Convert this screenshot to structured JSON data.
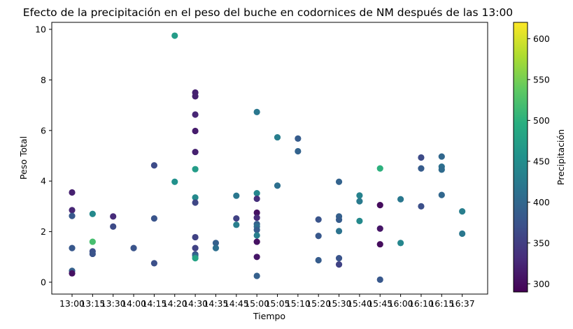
{
  "chart_data": {
    "type": "scatter",
    "title": "Efecto de la precipitación en el peso del buche en codornices de NM después de las 13:00",
    "xlabel": "Tiempo",
    "ylabel": "Peso Total",
    "categories": [
      "13:00",
      "13:15",
      "13:30",
      "14:00",
      "14:15",
      "14:20",
      "14:30",
      "14:35",
      "14:45",
      "15:00",
      "15:05",
      "15:10",
      "15:20",
      "15:30",
      "15:40",
      "15:45",
      "16:00",
      "16:10",
      "16:15",
      "16:37"
    ],
    "yticks": [
      0,
      2,
      4,
      6,
      8,
      10
    ],
    "ylim": [
      -0.4,
      10.35
    ],
    "grid": false,
    "colorbar": {
      "label": "Precipitación",
      "colormap": "viridis",
      "range": [
        290,
        620
      ],
      "ticks": [
        300,
        350,
        400,
        450,
        500,
        550,
        600
      ]
    },
    "points": [
      {
        "x": "13:00",
        "y": 3.55,
        "c": 320
      },
      {
        "x": "13:00",
        "y": 2.85,
        "c": 325
      },
      {
        "x": "13:00",
        "y": 2.62,
        "c": 380
      },
      {
        "x": "13:00",
        "y": 1.35,
        "c": 380
      },
      {
        "x": "13:00",
        "y": 0.45,
        "c": 390
      },
      {
        "x": "13:00",
        "y": 0.35,
        "c": 305
      },
      {
        "x": "13:15",
        "y": 2.7,
        "c": 445
      },
      {
        "x": "13:15",
        "y": 1.6,
        "c": 520
      },
      {
        "x": "13:15",
        "y": 1.22,
        "c": 370
      },
      {
        "x": "13:15",
        "y": 1.12,
        "c": 375
      },
      {
        "x": "13:30",
        "y": 2.6,
        "c": 330
      },
      {
        "x": "13:30",
        "y": 2.2,
        "c": 365
      },
      {
        "x": "14:00",
        "y": 1.35,
        "c": 375
      },
      {
        "x": "14:15",
        "y": 4.62,
        "c": 365
      },
      {
        "x": "14:15",
        "y": 2.52,
        "c": 375
      },
      {
        "x": "14:15",
        "y": 0.75,
        "c": 370
      },
      {
        "x": "14:20",
        "y": 9.75,
        "c": 470
      },
      {
        "x": "14:20",
        "y": 3.97,
        "c": 455
      },
      {
        "x": "14:30",
        "y": 7.5,
        "c": 320
      },
      {
        "x": "14:30",
        "y": 7.35,
        "c": 320
      },
      {
        "x": "14:30",
        "y": 6.63,
        "c": 325
      },
      {
        "x": "14:30",
        "y": 5.98,
        "c": 315
      },
      {
        "x": "14:30",
        "y": 5.15,
        "c": 320
      },
      {
        "x": "14:30",
        "y": 4.47,
        "c": 470
      },
      {
        "x": "14:30",
        "y": 3.35,
        "c": 445
      },
      {
        "x": "14:30",
        "y": 3.15,
        "c": 360
      },
      {
        "x": "14:30",
        "y": 1.78,
        "c": 355
      },
      {
        "x": "14:30",
        "y": 1.35,
        "c": 355
      },
      {
        "x": "14:30",
        "y": 1.1,
        "c": 370
      },
      {
        "x": "14:30",
        "y": 1.05,
        "c": 400
      },
      {
        "x": "14:30",
        "y": 0.95,
        "c": 480
      },
      {
        "x": "14:35",
        "y": 1.55,
        "c": 390
      },
      {
        "x": "14:35",
        "y": 1.35,
        "c": 410
      },
      {
        "x": "14:45",
        "y": 3.42,
        "c": 420
      },
      {
        "x": "14:45",
        "y": 2.52,
        "c": 355
      },
      {
        "x": "14:45",
        "y": 2.27,
        "c": 430
      },
      {
        "x": "15:00",
        "y": 6.73,
        "c": 420
      },
      {
        "x": "15:00",
        "y": 3.52,
        "c": 440
      },
      {
        "x": "15:00",
        "y": 3.3,
        "c": 335
      },
      {
        "x": "15:00",
        "y": 2.75,
        "c": 305
      },
      {
        "x": "15:00",
        "y": 2.55,
        "c": 330
      },
      {
        "x": "15:00",
        "y": 2.3,
        "c": 390
      },
      {
        "x": "15:00",
        "y": 2.2,
        "c": 410
      },
      {
        "x": "15:00",
        "y": 2.07,
        "c": 385
      },
      {
        "x": "15:00",
        "y": 1.85,
        "c": 430
      },
      {
        "x": "15:00",
        "y": 1.6,
        "c": 305
      },
      {
        "x": "15:00",
        "y": 1.0,
        "c": 310
      },
      {
        "x": "15:00",
        "y": 0.25,
        "c": 390
      },
      {
        "x": "15:05",
        "y": 5.73,
        "c": 430
      },
      {
        "x": "15:05",
        "y": 3.82,
        "c": 410
      },
      {
        "x": "15:10",
        "y": 5.68,
        "c": 385
      },
      {
        "x": "15:10",
        "y": 5.18,
        "c": 395
      },
      {
        "x": "15:20",
        "y": 2.48,
        "c": 375
      },
      {
        "x": "15:20",
        "y": 1.83,
        "c": 380
      },
      {
        "x": "15:20",
        "y": 0.87,
        "c": 385
      },
      {
        "x": "15:30",
        "y": 3.97,
        "c": 395
      },
      {
        "x": "15:30",
        "y": 2.6,
        "c": 390
      },
      {
        "x": "15:30",
        "y": 2.47,
        "c": 385
      },
      {
        "x": "15:30",
        "y": 2.02,
        "c": 415
      },
      {
        "x": "15:30",
        "y": 0.95,
        "c": 375
      },
      {
        "x": "15:30",
        "y": 0.7,
        "c": 355
      },
      {
        "x": "15:40",
        "y": 3.43,
        "c": 435
      },
      {
        "x": "15:40",
        "y": 3.2,
        "c": 425
      },
      {
        "x": "15:40",
        "y": 2.42,
        "c": 445
      },
      {
        "x": "15:45",
        "y": 4.5,
        "c": 500
      },
      {
        "x": "15:45",
        "y": 3.05,
        "c": 300
      },
      {
        "x": "15:45",
        "y": 2.12,
        "c": 310
      },
      {
        "x": "15:45",
        "y": 1.5,
        "c": 300
      },
      {
        "x": "15:45",
        "y": 0.1,
        "c": 380
      },
      {
        "x": "16:00",
        "y": 3.28,
        "c": 420
      },
      {
        "x": "16:00",
        "y": 1.55,
        "c": 440
      },
      {
        "x": "16:10",
        "y": 4.93,
        "c": 365
      },
      {
        "x": "16:10",
        "y": 4.5,
        "c": 385
      },
      {
        "x": "16:10",
        "y": 3.0,
        "c": 370
      },
      {
        "x": "16:15",
        "y": 4.97,
        "c": 400
      },
      {
        "x": "16:15",
        "y": 4.57,
        "c": 410
      },
      {
        "x": "16:15",
        "y": 4.45,
        "c": 405
      },
      {
        "x": "16:15",
        "y": 3.45,
        "c": 400
      },
      {
        "x": "16:37",
        "y": 2.8,
        "c": 430
      },
      {
        "x": "16:37",
        "y": 1.92,
        "c": 420
      }
    ]
  }
}
